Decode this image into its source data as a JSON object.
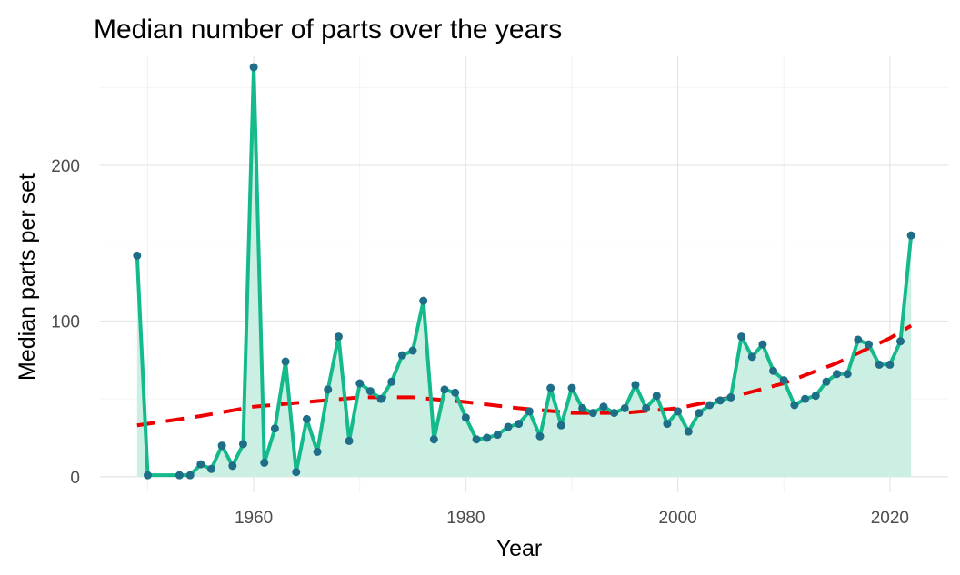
{
  "chart_data": {
    "type": "line",
    "title": "Median number of parts over the years",
    "xlabel": "Year",
    "ylabel": "Median parts per set",
    "xlim": [
      1945.5,
      2025.5
    ],
    "ylim": [
      -10,
      270
    ],
    "x_ticks": [
      1960,
      1980,
      2000,
      2020
    ],
    "y_ticks": [
      0,
      100,
      200
    ],
    "grid": true,
    "legend": "none",
    "colors": {
      "line": "#14b98c",
      "area": "#ccefe3",
      "points": "#1e6e87",
      "trend": "#ee0000"
    },
    "series": [
      {
        "type": "line-area",
        "x": [
          1949,
          1950,
          1953,
          1954,
          1955,
          1956,
          1957,
          1958,
          1959,
          1960,
          1961,
          1962,
          1963,
          1964,
          1965,
          1966,
          1967,
          1968,
          1969,
          1970,
          1971,
          1972,
          1973,
          1974,
          1975,
          1976,
          1977,
          1978,
          1979,
          1980,
          1981,
          1982,
          1983,
          1984,
          1985,
          1986,
          1987,
          1988,
          1989,
          1990,
          1991,
          1992,
          1993,
          1994,
          1995,
          1996,
          1997,
          1998,
          1999,
          2000,
          2001,
          2002,
          2003,
          2004,
          2005,
          2006,
          2007,
          2008,
          2009,
          2010,
          2011,
          2012,
          2013,
          2014,
          2015,
          2016,
          2017,
          2018,
          2019,
          2020,
          2021,
          2022
        ],
        "y": [
          142,
          1,
          1,
          1,
          8,
          5,
          20,
          7,
          21,
          263,
          9,
          31,
          74,
          3,
          37,
          16,
          56,
          90,
          23,
          60,
          55,
          50,
          61,
          78,
          81,
          113,
          24,
          56,
          54,
          38,
          24,
          25,
          27,
          32,
          34,
          42,
          26,
          57,
          33,
          57,
          44,
          41,
          45,
          41,
          44,
          59,
          44,
          52,
          34,
          42,
          29,
          41,
          46,
          49,
          51,
          90,
          77,
          85,
          68,
          62,
          46,
          50,
          52,
          61,
          66,
          66,
          88,
          85,
          72,
          72,
          87,
          155
        ]
      },
      {
        "type": "trend",
        "style": "dashed",
        "x": [
          1949,
          1955,
          1960,
          1965,
          1970,
          1975,
          1980,
          1985,
          1990,
          1995,
          2000,
          2005,
          2010,
          2015,
          2020,
          2022
        ],
        "y": [
          33,
          39,
          45,
          48,
          51,
          51,
          48,
          44,
          41,
          41,
          44,
          51,
          60,
          73,
          89,
          97
        ]
      }
    ]
  }
}
